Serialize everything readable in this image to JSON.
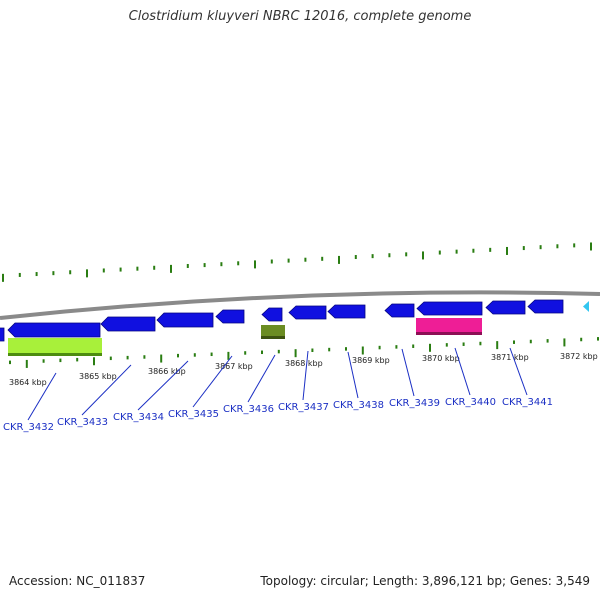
{
  "title": "Clostridium kluyveri NBRC 12016, complete genome",
  "footer": {
    "accession": "Accession: NC_011837",
    "stats": "Topology: circular; Length: 3,896,121 bp; Genes: 3,549"
  },
  "colors": {
    "backbone": "#8a8a8a",
    "forward_gene": "#1010e0",
    "tick": "#2a7d12",
    "label_text": "#1b2fc4",
    "rRNA_like": "#a8f03a",
    "ncRNA_like": "#6b8c22",
    "pseudo_like": "#ee1e96",
    "cyan_marker": "#33c6f0"
  },
  "kbp_labels": [
    "3864 kbp",
    "3865 kbp",
    "3866 kbp",
    "3867 kbp",
    "3868 kbp",
    "3869 kbp",
    "3870 kbp",
    "3871 kbp",
    "3872 kbp"
  ],
  "gene_labels": [
    "CKR_3432",
    "CKR_3433",
    "CKR_3434",
    "CKR_3435",
    "CKR_3436",
    "CKR_3437",
    "CKR_3438",
    "CKR_3439",
    "CKR_3440",
    "CKR_3441"
  ],
  "features": [
    {
      "kind": "gene",
      "strand": "-"
    },
    {
      "kind": "gene",
      "strand": "-"
    },
    {
      "kind": "gene",
      "strand": "-"
    },
    {
      "kind": "gene",
      "strand": "-"
    },
    {
      "kind": "gene",
      "strand": "-"
    },
    {
      "kind": "gene",
      "strand": "-"
    },
    {
      "kind": "gene",
      "strand": "-"
    },
    {
      "kind": "gene",
      "strand": "-"
    },
    {
      "kind": "gene",
      "strand": "-"
    },
    {
      "kind": "gene",
      "strand": "-"
    },
    {
      "kind": "gene",
      "strand": "-"
    },
    {
      "kind": "gene",
      "strand": "-"
    },
    {
      "kind": "misc",
      "strand": "+"
    },
    {
      "kind": "misc",
      "strand": "+"
    },
    {
      "kind": "misc",
      "strand": "+"
    },
    {
      "kind": "partial",
      "strand": "+"
    }
  ]
}
